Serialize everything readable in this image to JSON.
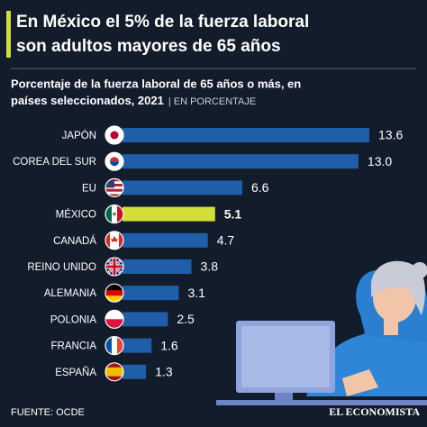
{
  "chart_data": {
    "type": "bar",
    "orientation": "horizontal",
    "title": [
      "En México el 5% de la fuerza laboral",
      "son adultos mayores de 65 años"
    ],
    "subtitle": [
      "Porcentaje de la fuerza laboral de 65 años o más, en",
      "países seleccionados, 2021"
    ],
    "unit_note": "| EN PORCENTAJE",
    "categories": [
      "JAPÓN",
      "COREA DEL SUR",
      "EU",
      "MÉXICO",
      "CANADÁ",
      "REINO UNIDO",
      "ALEMANIA",
      "POLONIA",
      "FRANCIA",
      "ESPAÑA"
    ],
    "values": [
      13.6,
      13.0,
      6.6,
      5.1,
      4.7,
      3.8,
      3.1,
      2.5,
      1.6,
      1.3
    ],
    "value_labels": [
      "13.6",
      "13.0",
      "6.6",
      "5.1",
      "4.7",
      "3.8",
      "3.1",
      "2.5",
      "1.6",
      "1.3"
    ],
    "colors": [
      "#1f5ea8",
      "#1f5ea8",
      "#1f5ea8",
      "#d3dd3a",
      "#1f5ea8",
      "#1f5ea8",
      "#1f5ea8",
      "#1f5ea8",
      "#1f5ea8",
      "#1f5ea8"
    ],
    "source": "FUENTE: OCDE",
    "brand": "EL ECONOMISTA"
  }
}
